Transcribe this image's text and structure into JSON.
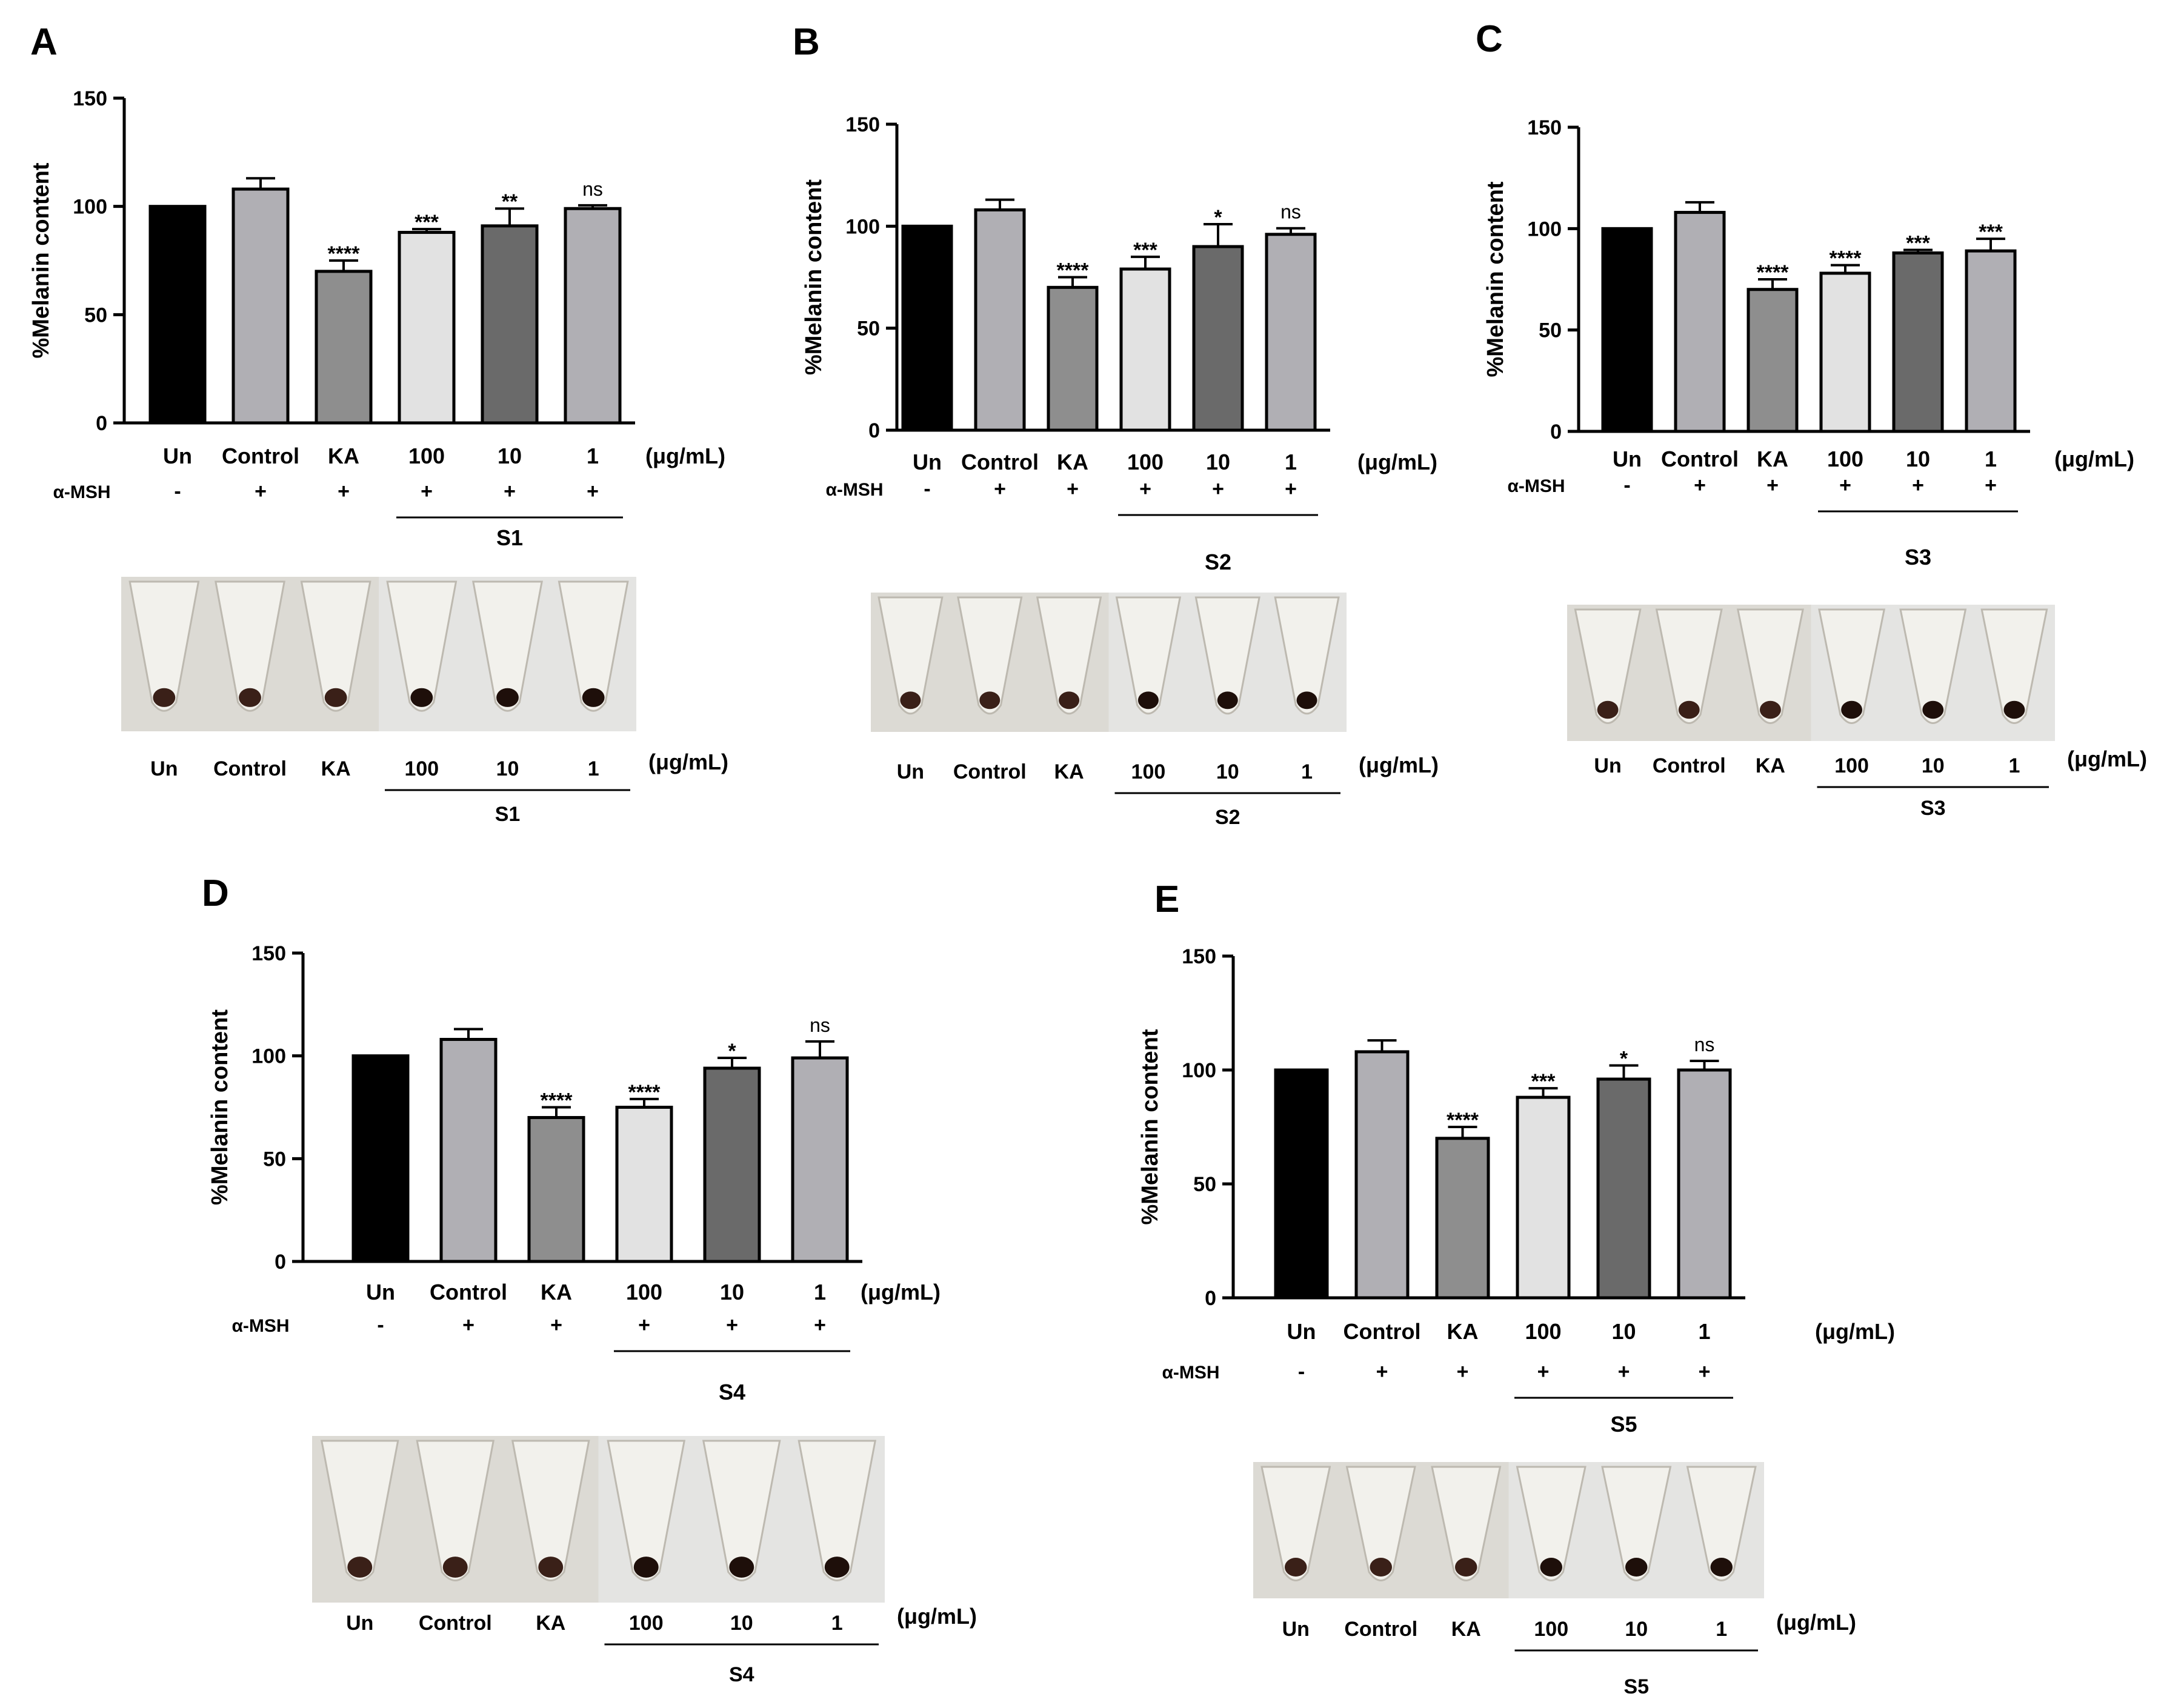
{
  "figure": {
    "y_axis_label": "%Melanin content",
    "unit_label": "(μg/mL)",
    "treatment_label": "α-MSH",
    "photo_description": "Photographs of cell pellets in microcentrifuge tubes; pellet darkness decreases with lower melanin"
  },
  "chart_data": [
    {
      "panel": "A",
      "type": "bar",
      "sample": "S1",
      "title": "",
      "xlabel": "",
      "ylabel": "%Melanin content",
      "ylim": [
        0,
        150
      ],
      "yticks": [
        0,
        50,
        100,
        150
      ],
      "categories": [
        "Un",
        "Control",
        "KA",
        "100",
        "10",
        "1"
      ],
      "values": [
        100,
        108,
        70,
        88,
        91,
        99
      ],
      "errors": [
        0,
        5,
        5,
        1.5,
        8,
        1.5
      ],
      "significance": [
        "",
        "",
        "****",
        "***",
        "**",
        "ns"
      ],
      "msh": [
        "-",
        "+",
        "+",
        "+",
        "+",
        "+"
      ],
      "bar_colors": [
        "#000000",
        "#b0afb4",
        "#8e8e8e",
        "#e2e2e2",
        "#6a6a6a",
        "#b0afb4"
      ],
      "photo_labels": [
        "Un",
        "Control",
        "KA",
        "100",
        "10",
        "1"
      ]
    },
    {
      "panel": "B",
      "type": "bar",
      "sample": "S2",
      "title": "",
      "xlabel": "",
      "ylabel": "%Melanin content",
      "ylim": [
        0,
        150
      ],
      "yticks": [
        0,
        50,
        100,
        150
      ],
      "categories": [
        "Un",
        "Control",
        "KA",
        "100",
        "10",
        "1"
      ],
      "values": [
        100,
        108,
        70,
        79,
        90,
        96
      ],
      "errors": [
        0,
        5,
        5,
        6,
        11,
        3
      ],
      "significance": [
        "",
        "",
        "****",
        "***",
        "*",
        "ns"
      ],
      "msh": [
        "-",
        "+",
        "+",
        "+",
        "+",
        "+"
      ],
      "bar_colors": [
        "#000000",
        "#b0afb4",
        "#8e8e8e",
        "#e2e2e2",
        "#6a6a6a",
        "#b0afb4"
      ],
      "photo_labels": [
        "Un",
        "Control",
        "KA",
        "100",
        "10",
        "1"
      ]
    },
    {
      "panel": "C",
      "type": "bar",
      "sample": "S3",
      "title": "",
      "xlabel": "",
      "ylabel": "%Melanin content",
      "ylim": [
        0,
        150
      ],
      "yticks": [
        0,
        50,
        100,
        150
      ],
      "categories": [
        "Un",
        "Control",
        "KA",
        "100",
        "10",
        "1"
      ],
      "values": [
        100,
        108,
        70,
        78,
        88,
        89
      ],
      "errors": [
        0,
        5,
        5,
        4,
        1.5,
        6
      ],
      "significance": [
        "",
        "",
        "****",
        "****",
        "***",
        "***"
      ],
      "msh": [
        "-",
        "+",
        "+",
        "+",
        "+",
        "+"
      ],
      "bar_colors": [
        "#000000",
        "#b0afb4",
        "#8e8e8e",
        "#e2e2e2",
        "#6a6a6a",
        "#b0afb4"
      ],
      "photo_labels": [
        "Un",
        "Control",
        "KA",
        "100",
        "10",
        "1"
      ]
    },
    {
      "panel": "D",
      "type": "bar",
      "sample": "S4",
      "title": "",
      "xlabel": "",
      "ylabel": "%Melanin content",
      "ylim": [
        0,
        150
      ],
      "yticks": [
        0,
        50,
        100,
        150
      ],
      "categories": [
        "Un",
        "Control",
        "KA",
        "100",
        "10",
        "1"
      ],
      "values": [
        100,
        108,
        70,
        75,
        94,
        99
      ],
      "errors": [
        0,
        5,
        5,
        4,
        5,
        8
      ],
      "significance": [
        "",
        "",
        "****",
        "****",
        "*",
        "ns"
      ],
      "msh": [
        "-",
        "+",
        "+",
        "+",
        "+",
        "+"
      ],
      "bar_colors": [
        "#000000",
        "#b0afb4",
        "#8e8e8e",
        "#e2e2e2",
        "#6a6a6a",
        "#b0afb4"
      ],
      "photo_labels": [
        "Un",
        "Control",
        "KA",
        "100",
        "10",
        "1"
      ]
    },
    {
      "panel": "E",
      "type": "bar",
      "sample": "S5",
      "title": "",
      "xlabel": "",
      "ylabel": "%Melanin content",
      "ylim": [
        0,
        150
      ],
      "yticks": [
        0,
        50,
        100,
        150
      ],
      "categories": [
        "Un",
        "Control",
        "KA",
        "100",
        "10",
        "1"
      ],
      "values": [
        100,
        108,
        70,
        88,
        96,
        100
      ],
      "errors": [
        0,
        5,
        5,
        4,
        6,
        4
      ],
      "significance": [
        "",
        "",
        "****",
        "***",
        "*",
        "ns"
      ],
      "msh": [
        "-",
        "+",
        "+",
        "+",
        "+",
        "+"
      ],
      "bar_colors": [
        "#000000",
        "#b0afb4",
        "#8e8e8e",
        "#e2e2e2",
        "#6a6a6a",
        "#b0afb4"
      ],
      "photo_labels": [
        "Un",
        "Control",
        "KA",
        "100",
        "10",
        "1"
      ]
    }
  ]
}
